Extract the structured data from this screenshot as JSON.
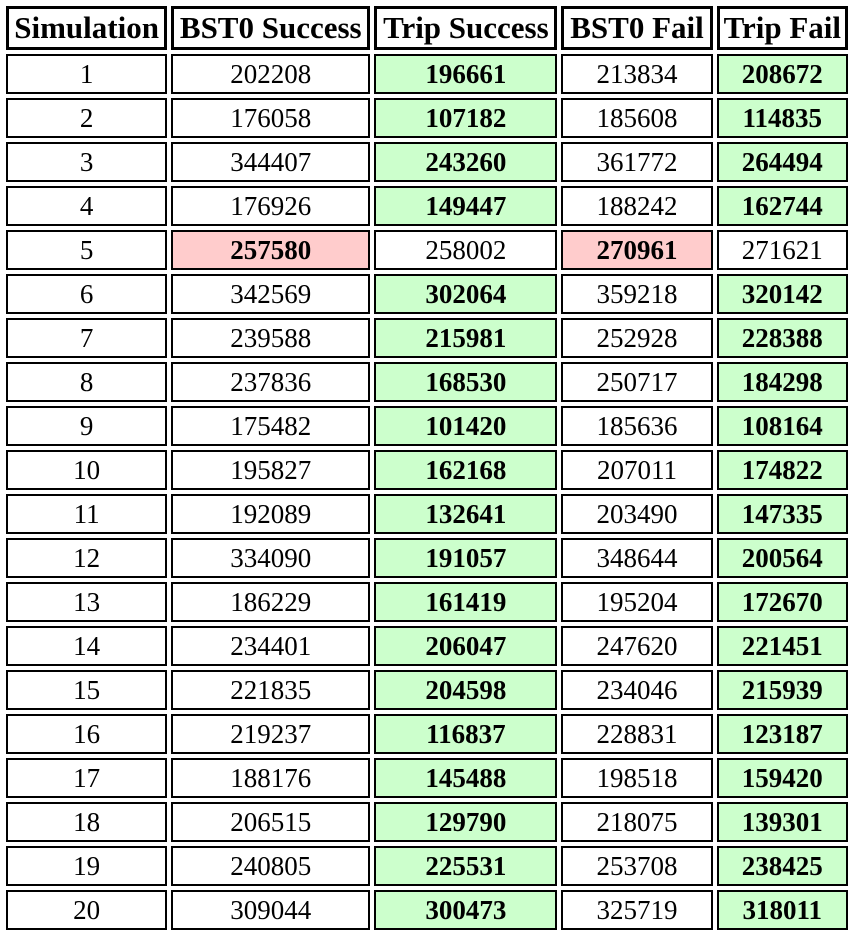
{
  "table": {
    "headers": [
      "Simulation",
      "BST0 Success",
      "Trip Success",
      "BST0 Fail",
      "Trip Fail"
    ],
    "rows": [
      {
        "cells": [
          "1",
          "202208",
          "196661",
          "213834",
          "208672"
        ],
        "highlight": [
          "",
          "",
          "win",
          "",
          "win"
        ]
      },
      {
        "cells": [
          "2",
          "176058",
          "107182",
          "185608",
          "114835"
        ],
        "highlight": [
          "",
          "",
          "win",
          "",
          "win"
        ]
      },
      {
        "cells": [
          "3",
          "344407",
          "243260",
          "361772",
          "264494"
        ],
        "highlight": [
          "",
          "",
          "win",
          "",
          "win"
        ]
      },
      {
        "cells": [
          "4",
          "176926",
          "149447",
          "188242",
          "162744"
        ],
        "highlight": [
          "",
          "",
          "win",
          "",
          "win"
        ]
      },
      {
        "cells": [
          "5",
          "257580",
          "258002",
          "270961",
          "271621"
        ],
        "highlight": [
          "",
          "lose",
          "",
          "lose",
          ""
        ]
      },
      {
        "cells": [
          "6",
          "342569",
          "302064",
          "359218",
          "320142"
        ],
        "highlight": [
          "",
          "",
          "win",
          "",
          "win"
        ]
      },
      {
        "cells": [
          "7",
          "239588",
          "215981",
          "252928",
          "228388"
        ],
        "highlight": [
          "",
          "",
          "win",
          "",
          "win"
        ]
      },
      {
        "cells": [
          "8",
          "237836",
          "168530",
          "250717",
          "184298"
        ],
        "highlight": [
          "",
          "",
          "win",
          "",
          "win"
        ]
      },
      {
        "cells": [
          "9",
          "175482",
          "101420",
          "185636",
          "108164"
        ],
        "highlight": [
          "",
          "",
          "win",
          "",
          "win"
        ]
      },
      {
        "cells": [
          "10",
          "195827",
          "162168",
          "207011",
          "174822"
        ],
        "highlight": [
          "",
          "",
          "win",
          "",
          "win"
        ]
      },
      {
        "cells": [
          "11",
          "192089",
          "132641",
          "203490",
          "147335"
        ],
        "highlight": [
          "",
          "",
          "win",
          "",
          "win"
        ]
      },
      {
        "cells": [
          "12",
          "334090",
          "191057",
          "348644",
          "200564"
        ],
        "highlight": [
          "",
          "",
          "win",
          "",
          "win"
        ]
      },
      {
        "cells": [
          "13",
          "186229",
          "161419",
          "195204",
          "172670"
        ],
        "highlight": [
          "",
          "",
          "win",
          "",
          "win"
        ]
      },
      {
        "cells": [
          "14",
          "234401",
          "206047",
          "247620",
          "221451"
        ],
        "highlight": [
          "",
          "",
          "win",
          "",
          "win"
        ]
      },
      {
        "cells": [
          "15",
          "221835",
          "204598",
          "234046",
          "215939"
        ],
        "highlight": [
          "",
          "",
          "win",
          "",
          "win"
        ]
      },
      {
        "cells": [
          "16",
          "219237",
          "116837",
          "228831",
          "123187"
        ],
        "highlight": [
          "",
          "",
          "win",
          "",
          "win"
        ]
      },
      {
        "cells": [
          "17",
          "188176",
          "145488",
          "198518",
          "159420"
        ],
        "highlight": [
          "",
          "",
          "win",
          "",
          "win"
        ]
      },
      {
        "cells": [
          "18",
          "206515",
          "129790",
          "218075",
          "139301"
        ],
        "highlight": [
          "",
          "",
          "win",
          "",
          "win"
        ]
      },
      {
        "cells": [
          "19",
          "240805",
          "225531",
          "253708",
          "238425"
        ],
        "highlight": [
          "",
          "",
          "win",
          "",
          "win"
        ]
      },
      {
        "cells": [
          "20",
          "309044",
          "300473",
          "325719",
          "318011"
        ],
        "highlight": [
          "",
          "",
          "win",
          "",
          "win"
        ]
      }
    ]
  },
  "colors": {
    "win_background": "#ccffcc",
    "lose_background": "#ffcccc",
    "border": "#000000"
  }
}
